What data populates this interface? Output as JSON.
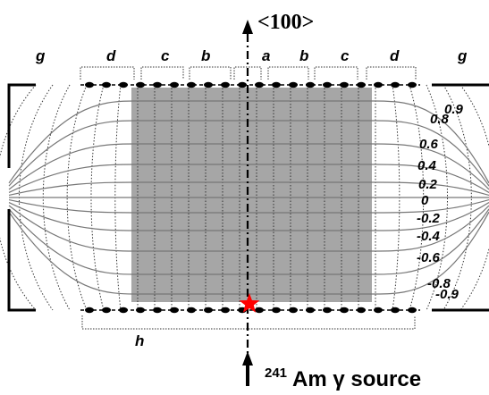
{
  "diagram": {
    "crystal_direction": "<100>",
    "source_isotope": "241",
    "source_label": "Am γ source",
    "segment_labels_top": [
      "g",
      "d",
      "c",
      "b",
      "a",
      "b",
      "c",
      "d",
      "g"
    ],
    "segment_label_bottom": "h",
    "potential_labels": [
      "0.9",
      "0.8",
      "0.6",
      "0.4",
      "0.2",
      "0",
      "-0.2",
      "-0.4",
      "-0.6",
      "-0.8",
      "-0.9"
    ],
    "colors": {
      "shaded_region": "#a6a6a6",
      "source_marker": "#ff0000",
      "field_lines": "#333333",
      "equipotential_lines": "#777777"
    }
  }
}
